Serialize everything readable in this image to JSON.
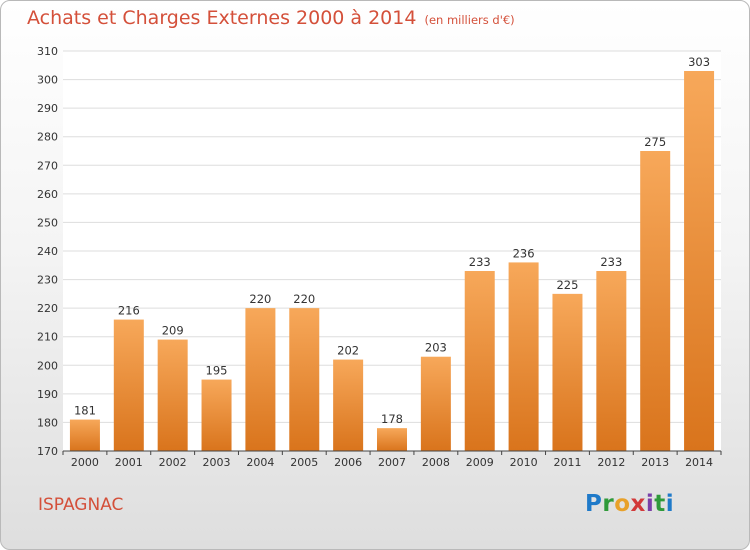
{
  "title": "Achats et Charges Externes 2000 à 2014",
  "unit_note": "(en milliers d'€)",
  "commune": "ISPAGNAC",
  "logo": "Proxiti",
  "colors": {
    "bar_light": "#f7a85a",
    "bar_dark": "#d9741c",
    "title": "#d4503a"
  },
  "chart_data": {
    "type": "bar",
    "title": "Achats et Charges Externes 2000 à 2014",
    "xlabel": "",
    "ylabel": "",
    "categories": [
      "2000",
      "2001",
      "2002",
      "2003",
      "2004",
      "2005",
      "2006",
      "2007",
      "2008",
      "2009",
      "2010",
      "2011",
      "2012",
      "2013",
      "2014"
    ],
    "values": [
      181,
      216,
      209,
      195,
      220,
      220,
      202,
      178,
      203,
      233,
      236,
      225,
      233,
      275,
      303
    ],
    "ylim": [
      170,
      310
    ],
    "yticks": [
      170,
      180,
      190,
      200,
      210,
      220,
      230,
      240,
      250,
      260,
      270,
      280,
      290,
      300,
      310
    ],
    "grid": true
  }
}
